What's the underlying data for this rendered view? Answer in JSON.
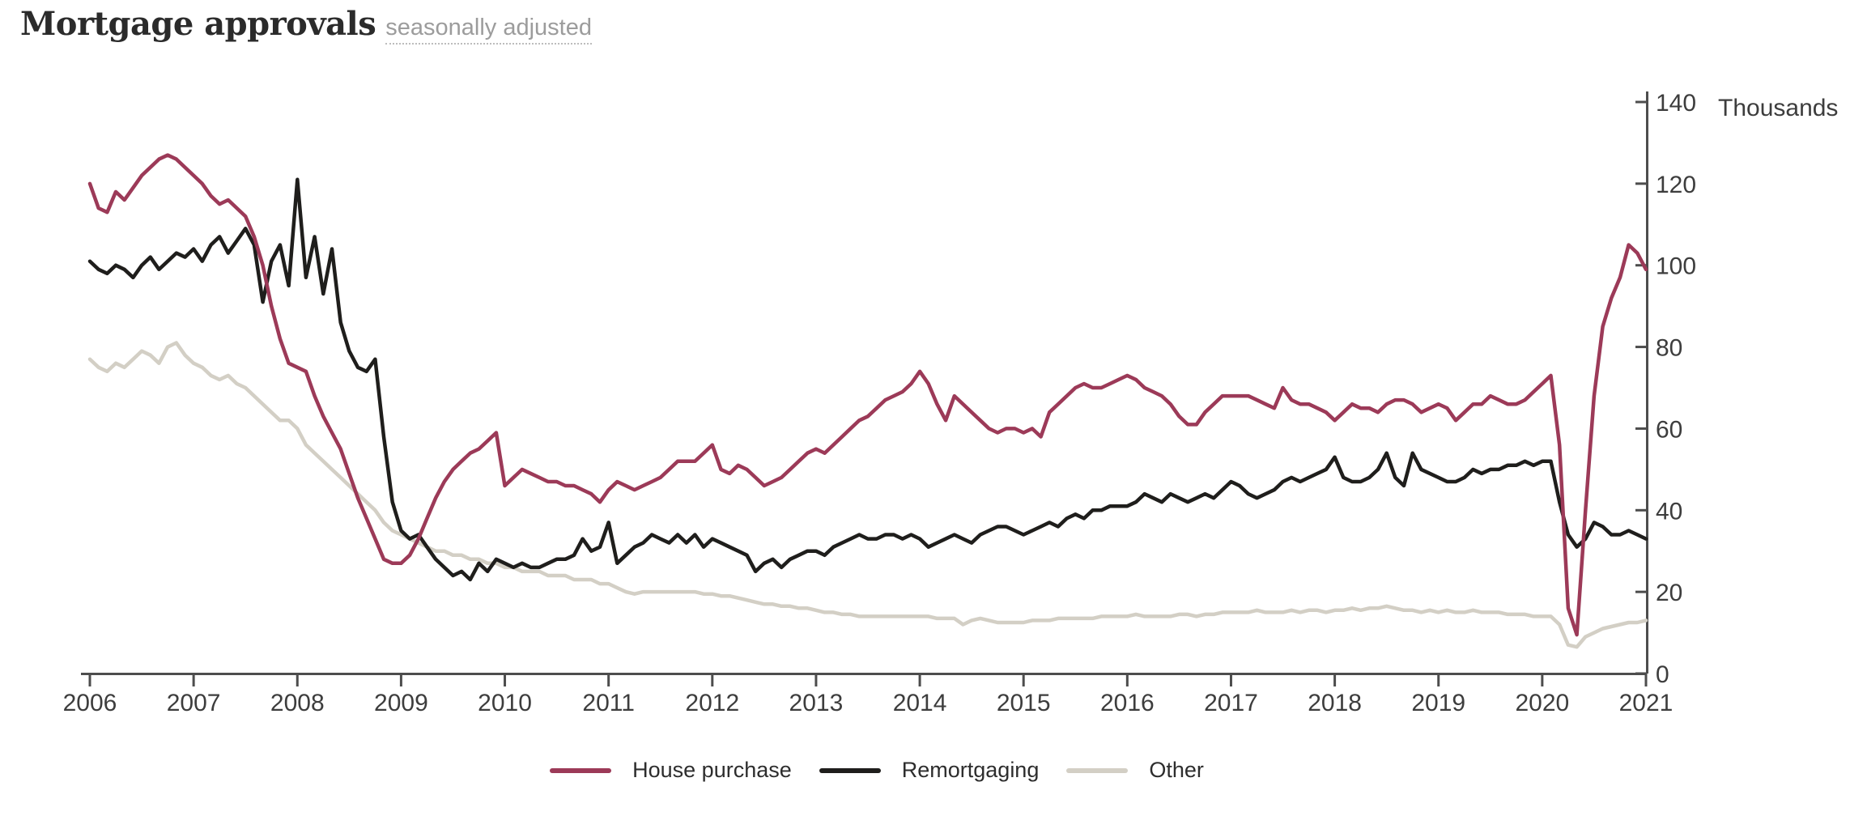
{
  "header": {
    "title": "Mortgage approvals",
    "subtitle": "seasonally adjusted"
  },
  "chart_data": {
    "type": "line",
    "title": "Mortgage approvals",
    "subtitle": "seasonally adjusted",
    "grid": false,
    "legend_position": "bottom",
    "x_axis": {
      "start_year": 2006,
      "frequency": "monthly",
      "tick_labels": [
        "2006",
        "2007",
        "2008",
        "2009",
        "2010",
        "2011",
        "2012",
        "2013",
        "2014",
        "2015",
        "2016",
        "2017",
        "2018",
        "2019",
        "2020",
        "2021"
      ]
    },
    "y_axis": {
      "unit_label": "Thousands",
      "ylim": [
        0,
        140
      ],
      "tick_labels": [
        "0",
        "20",
        "40",
        "60",
        "80",
        "100",
        "120",
        "140"
      ]
    },
    "series": [
      {
        "name": "House purchase",
        "color": "#9c3a58",
        "values": [
          120,
          114,
          113,
          118,
          116,
          119,
          122,
          124,
          126,
          127,
          126,
          124,
          122,
          120,
          117,
          115,
          116,
          114,
          112,
          107,
          100,
          90,
          82,
          76,
          75,
          74,
          68,
          63,
          59,
          55,
          49,
          43,
          38,
          33,
          28,
          27,
          27,
          29,
          33,
          38,
          43,
          47,
          50,
          52,
          54,
          55,
          57,
          59,
          46,
          48,
          50,
          49,
          48,
          47,
          47,
          46,
          46,
          45,
          44,
          42,
          45,
          47,
          46,
          45,
          46,
          47,
          48,
          50,
          52,
          52,
          52,
          54,
          56,
          50,
          49,
          51,
          50,
          48,
          46,
          47,
          48,
          50,
          52,
          54,
          55,
          54,
          56,
          58,
          60,
          62,
          63,
          65,
          67,
          68,
          69,
          71,
          74,
          71,
          66,
          62,
          68,
          66,
          64,
          62,
          60,
          59,
          60,
          60,
          59,
          60,
          58,
          64,
          66,
          68,
          70,
          71,
          70,
          70,
          71,
          72,
          73,
          72,
          70,
          69,
          68,
          66,
          63,
          61,
          61,
          64,
          66,
          68,
          68,
          68,
          68,
          67,
          66,
          65,
          70,
          67,
          66,
          66,
          65,
          64,
          62,
          64,
          66,
          65,
          65,
          64,
          66,
          67,
          67,
          66,
          64,
          65,
          66,
          65,
          62,
          64,
          66,
          66,
          68,
          67,
          66,
          66,
          67,
          69,
          71,
          73,
          56,
          16,
          9.5,
          40,
          68,
          85,
          92,
          97,
          105,
          103,
          99
        ]
      },
      {
        "name": "Remortgaging",
        "color": "#1f1e1c",
        "values": [
          101,
          99,
          98,
          100,
          99,
          97,
          100,
          102,
          99,
          101,
          103,
          102,
          104,
          101,
          105,
          107,
          103,
          106,
          109,
          105,
          91,
          101,
          105,
          95,
          121,
          97,
          107,
          93,
          104,
          86,
          79,
          75,
          74,
          77,
          58,
          42,
          35,
          33,
          34,
          31,
          28,
          26,
          24,
          25,
          23,
          27,
          25,
          28,
          27,
          26,
          27,
          26,
          26,
          27,
          28,
          28,
          29,
          33,
          30,
          31,
          37,
          27,
          29,
          31,
          32,
          34,
          33,
          32,
          34,
          32,
          34,
          31,
          33,
          32,
          31,
          30,
          29,
          25,
          27,
          28,
          26,
          28,
          29,
          30,
          30,
          29,
          31,
          32,
          33,
          34,
          33,
          33,
          34,
          34,
          33,
          34,
          33,
          31,
          32,
          33,
          34,
          33,
          32,
          34,
          35,
          36,
          36,
          35,
          34,
          35,
          36,
          37,
          36,
          38,
          39,
          38,
          40,
          40,
          41,
          41,
          41,
          42,
          44,
          43,
          42,
          44,
          43,
          42,
          43,
          44,
          43,
          45,
          47,
          46,
          44,
          43,
          44,
          45,
          47,
          48,
          47,
          48,
          49,
          50,
          53,
          48,
          47,
          47,
          48,
          50,
          54,
          48,
          46,
          54,
          50,
          49,
          48,
          47,
          47,
          48,
          50,
          49,
          50,
          50,
          51,
          51,
          52,
          51,
          52,
          52,
          42,
          34,
          31,
          33,
          37,
          36,
          34,
          34,
          35,
          34,
          33
        ]
      },
      {
        "name": "Other",
        "color": "#d3cfc5",
        "values": [
          77,
          75,
          74,
          76,
          75,
          77,
          79,
          78,
          76,
          80,
          81,
          78,
          76,
          75,
          73,
          72,
          73,
          71,
          70,
          68,
          66,
          64,
          62,
          62,
          60,
          56,
          54,
          52,
          50,
          48,
          46,
          44,
          42,
          40,
          37,
          35,
          34,
          33,
          32,
          31,
          30,
          30,
          29,
          29,
          28,
          28,
          27,
          27,
          26,
          26,
          25,
          25,
          25,
          24,
          24,
          24,
          23,
          23,
          23,
          22,
          22,
          21,
          20,
          19.5,
          20,
          20,
          20,
          20,
          20,
          20,
          20,
          19.5,
          19.5,
          19,
          19,
          18.5,
          18,
          17.5,
          17,
          17,
          16.5,
          16.5,
          16,
          16,
          15.5,
          15,
          15,
          14.5,
          14.5,
          14,
          14,
          14,
          14,
          14,
          14,
          14,
          14,
          14,
          13.5,
          13.5,
          13.5,
          12,
          13,
          13.5,
          13,
          12.5,
          12.5,
          12.5,
          12.5,
          13,
          13,
          13,
          13.5,
          13.5,
          13.5,
          13.5,
          13.5,
          14,
          14,
          14,
          14,
          14.5,
          14,
          14,
          14,
          14,
          14.5,
          14.5,
          14,
          14.5,
          14.5,
          15,
          15,
          15,
          15,
          15.5,
          15,
          15,
          15,
          15.5,
          15,
          15.5,
          15.5,
          15,
          15.5,
          15.5,
          16,
          15.5,
          16,
          16,
          16.5,
          16,
          15.5,
          15.5,
          15,
          15.5,
          15,
          15.5,
          15,
          15,
          15.5,
          15,
          15,
          15,
          14.5,
          14.5,
          14.5,
          14,
          14,
          14,
          12,
          7,
          6.5,
          9,
          10,
          11,
          11.5,
          12,
          12.5,
          12.5,
          13
        ]
      }
    ],
    "colors": {
      "axis": "#4d4d4d",
      "tick_text": "#3d3d3d"
    }
  }
}
